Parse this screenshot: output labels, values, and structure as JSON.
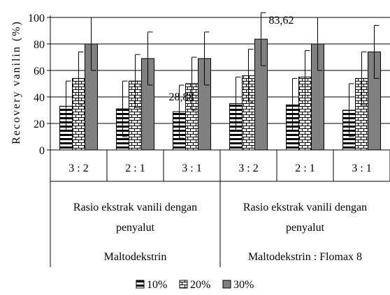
{
  "chart_data": {
    "type": "bar",
    "ylabel": "Recovery vanilin   (%)",
    "ylim": [
      0,
      100
    ],
    "yticks": [
      0,
      20,
      40,
      60,
      80,
      100
    ],
    "grid": true,
    "legend_position": "bottom",
    "categories": [
      "3 : 2",
      "2 : 1",
      "3 : 1",
      "3 : 2",
      "2 : 1",
      "3 : 1"
    ],
    "groups": [
      {
        "sublabel": "Rasio ekstrak vanili dengan penyalut",
        "name": "Maltodekstrin",
        "span": [
          0,
          2
        ]
      },
      {
        "sublabel": "Rasio ekstrak vanili dengan penyalut",
        "name": "Maltodekstrin : Flomax 8",
        "span": [
          3,
          5
        ]
      }
    ],
    "series": [
      {
        "name": "10%",
        "pattern": "horizontal-stripes",
        "values": [
          33,
          31,
          28.88,
          35,
          34,
          30
        ],
        "errors": [
          19,
          21,
          20,
          20,
          20,
          20
        ]
      },
      {
        "name": "20%",
        "pattern": "brick",
        "values": [
          54,
          52,
          50,
          56,
          55,
          54
        ],
        "errors": [
          20,
          20,
          20,
          20,
          20,
          20
        ]
      },
      {
        "name": "30%",
        "pattern": "solid-gray",
        "values": [
          80,
          69,
          69,
          83.62,
          80,
          74
        ],
        "errors": [
          20,
          20,
          20,
          20,
          20,
          20
        ]
      }
    ],
    "annotations": [
      {
        "text": "28,88",
        "category_index": 2,
        "series_index": 0
      },
      {
        "text": "83,62",
        "category_index": 3,
        "series_index": 2
      }
    ]
  }
}
